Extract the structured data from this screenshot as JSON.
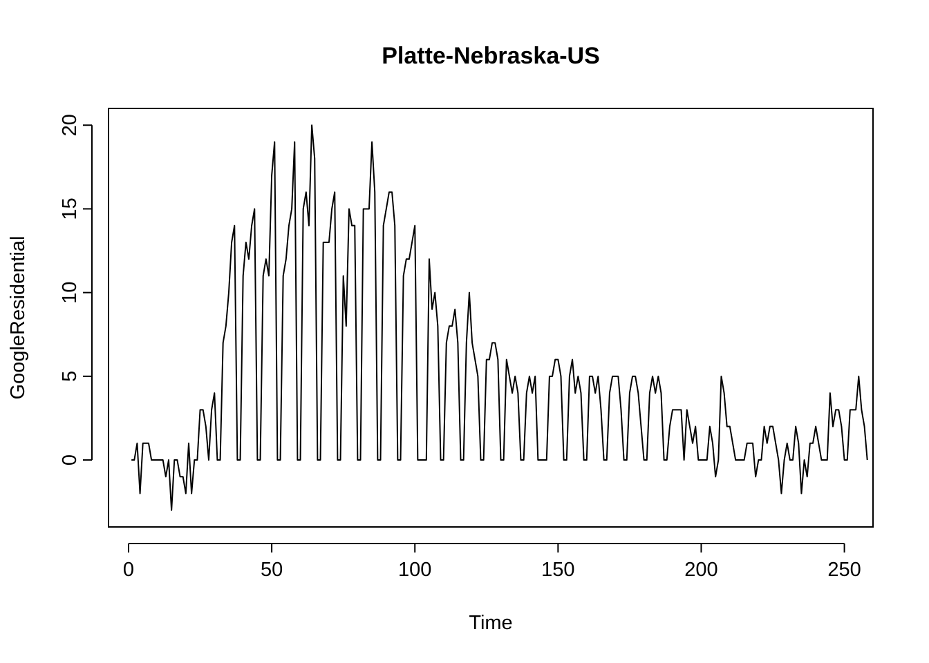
{
  "chart_data": {
    "type": "line",
    "title": "Platte-Nebraska-US",
    "xlabel": "Time",
    "ylabel": "GoogleResidential",
    "xlim": [
      -7,
      260
    ],
    "ylim": [
      -4,
      21
    ],
    "xticks": [
      0,
      50,
      100,
      150,
      200,
      250
    ],
    "yticks": [
      0,
      5,
      10,
      15,
      20
    ],
    "grid": false,
    "legend": "none",
    "line_color": "#000000",
    "x_start": 1,
    "values": [
      0,
      0,
      1,
      -2,
      1,
      1,
      1,
      0,
      0,
      0,
      0,
      0,
      -1,
      0,
      -3,
      0,
      0,
      -1,
      -1,
      -2,
      1,
      -2,
      0,
      0,
      3,
      3,
      2,
      0,
      3,
      4,
      0,
      0,
      7,
      8,
      10,
      13,
      14,
      0,
      0,
      11,
      13,
      12,
      14,
      15,
      0,
      0,
      11,
      12,
      11,
      17,
      19,
      0,
      0,
      11,
      12,
      14,
      15,
      19,
      0,
      0,
      15,
      16,
      14,
      20,
      18,
      0,
      0,
      13,
      13,
      13,
      15,
      16,
      0,
      0,
      11,
      8,
      15,
      14,
      14,
      0,
      0,
      15,
      15,
      15,
      19,
      16,
      0,
      0,
      14,
      15,
      16,
      16,
      14,
      0,
      0,
      11,
      12,
      12,
      13,
      14,
      0,
      0,
      0,
      0,
      12,
      9,
      10,
      8,
      0,
      0,
      7,
      8,
      8,
      9,
      7,
      0,
      0,
      7,
      10,
      7,
      6,
      5,
      0,
      0,
      6,
      6,
      7,
      7,
      6,
      0,
      0,
      6,
      5,
      4,
      5,
      4,
      0,
      0,
      4,
      5,
      4,
      5,
      0,
      0,
      0,
      0,
      5,
      5,
      6,
      6,
      5,
      0,
      0,
      5,
      6,
      4,
      5,
      4,
      0,
      0,
      5,
      5,
      4,
      5,
      3,
      0,
      0,
      4,
      5,
      5,
      5,
      3,
      0,
      0,
      4,
      5,
      5,
      4,
      2,
      0,
      0,
      4,
      5,
      4,
      5,
      4,
      0,
      0,
      2,
      3,
      3,
      3,
      3,
      0,
      3,
      2,
      1,
      2,
      0,
      0,
      0,
      0,
      2,
      1,
      -1,
      0,
      5,
      4,
      2,
      2,
      1,
      0,
      0,
      0,
      0,
      1,
      1,
      1,
      -1,
      0,
      0,
      2,
      1,
      2,
      2,
      1,
      0,
      -2,
      0,
      1,
      0,
      0,
      2,
      1,
      -2,
      0,
      -1,
      1,
      1,
      2,
      1,
      0,
      0,
      0,
      4,
      2,
      3,
      3,
      2,
      0,
      0,
      3,
      3,
      3,
      5,
      3,
      2,
      0
    ]
  }
}
